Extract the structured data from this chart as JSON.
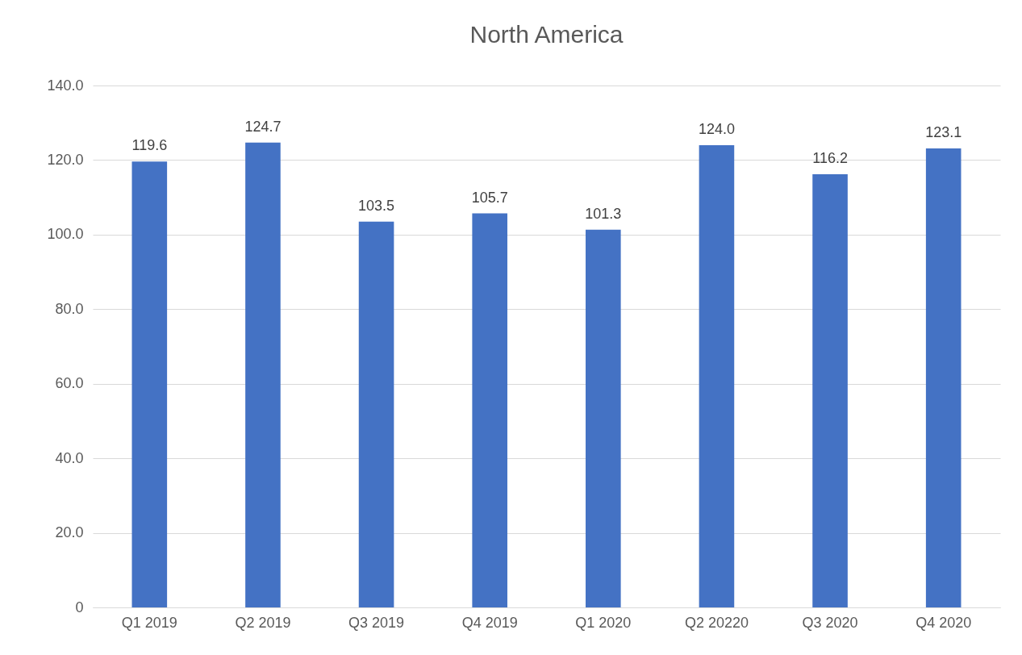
{
  "chart_data": {
    "type": "bar",
    "title": "North America",
    "categories": [
      "Q1 2019",
      "Q2 2019",
      "Q3 2019",
      "Q4 2019",
      "Q1 2020",
      "Q2 20220",
      "Q3 2020",
      "Q4 2020"
    ],
    "values": [
      119.6,
      124.7,
      103.5,
      105.7,
      101.3,
      124.0,
      116.2,
      123.1
    ],
    "value_labels": [
      "119.6",
      "124.7",
      "103.5",
      "105.7",
      "101.3",
      "124.0",
      "116.2",
      "123.1"
    ],
    "color": "#4472c4",
    "ylim": [
      0,
      140
    ],
    "yticks": [
      0,
      {
        "value": 20,
        "label": "20.0"
      },
      {
        "value": 40,
        "label": "40.0"
      },
      {
        "value": 60,
        "label": "60.0"
      },
      {
        "value": 80,
        "label": "80.0"
      },
      {
        "value": 100,
        "label": "100.0"
      },
      {
        "value": 120,
        "label": "120.0"
      },
      {
        "value": 140,
        "label": "140.0"
      }
    ],
    "grid": "y"
  }
}
